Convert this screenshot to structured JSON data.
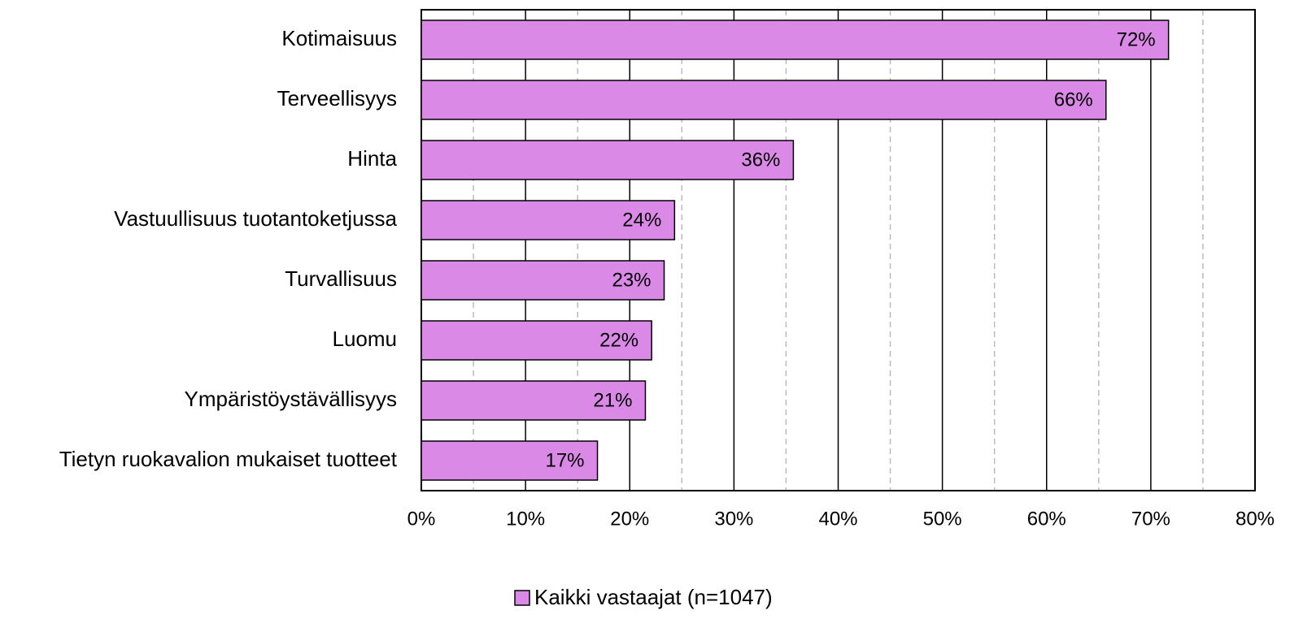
{
  "chart_data": {
    "type": "barh",
    "categories": [
      "Kotimaisuus",
      "Terveellisyys",
      "Hinta",
      "Vastuullisuus tuotantoketjussa",
      "Turvallisuus",
      "Luomu",
      "Ympäristöystävällisyys",
      "Tietyn ruokavalion mukaiset tuotteet"
    ],
    "series": [
      {
        "name": "Kaikki vastaajat (n=1047)",
        "color": "#da8ae6",
        "values": [
          71.7,
          65.7,
          35.7,
          24.3,
          23.3,
          22.1,
          21.5,
          16.9
        ],
        "value_labels": [
          "72%",
          "66%",
          "36%",
          "24%",
          "23%",
          "22%",
          "21%",
          "17%"
        ]
      }
    ],
    "xlim": [
      0,
      80
    ],
    "xticks": [
      {
        "value": 0,
        "label": "0%"
      },
      {
        "value": 10,
        "label": "10%"
      },
      {
        "value": 20,
        "label": "20%"
      },
      {
        "value": 30,
        "label": "30%"
      },
      {
        "value": 40,
        "label": "40%"
      },
      {
        "value": 50,
        "label": "50%"
      },
      {
        "value": 60,
        "label": "60%"
      },
      {
        "value": 70,
        "label": "70%"
      },
      {
        "value": 80,
        "label": "80%"
      }
    ],
    "minor_xticks": [
      5,
      15,
      25,
      35,
      45,
      55,
      65,
      75
    ],
    "grid": true,
    "legend": "bottom"
  }
}
